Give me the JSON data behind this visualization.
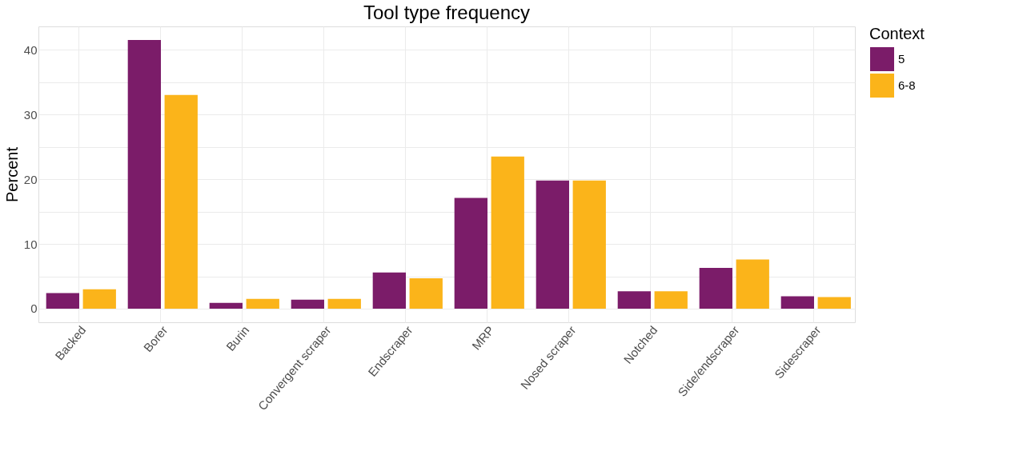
{
  "chart_data": {
    "type": "bar",
    "title": "Tool type frequency",
    "ylabel": "Percent",
    "legend_title": "Context",
    "categories": [
      "Backed",
      "Borer",
      "Burin",
      "Convergent scraper",
      "Endscraper",
      "MRP",
      "Nosed scraper",
      "Notched",
      "Side/endscraper",
      "Sidescraper"
    ],
    "series": [
      {
        "name": "5",
        "color": "#7b1c69",
        "values": [
          2.4,
          41.5,
          0.9,
          1.4,
          5.6,
          17.1,
          19.8,
          2.7,
          6.3,
          1.9
        ]
      },
      {
        "name": "6-8",
        "color": "#fbb41a",
        "values": [
          3.0,
          33.0,
          1.5,
          1.5,
          4.7,
          23.5,
          19.8,
          2.7,
          7.6,
          1.8
        ]
      }
    ],
    "ylim": [
      -2.1,
      43.6
    ],
    "yticks": [
      0,
      {
        "value": 5,
        "label": null
      },
      10,
      {
        "value": 15,
        "label": null
      },
      20,
      {
        "value": 25,
        "label": null
      },
      30,
      {
        "value": 35,
        "label": null
      },
      40
    ],
    "grid": true,
    "legend": "right"
  }
}
